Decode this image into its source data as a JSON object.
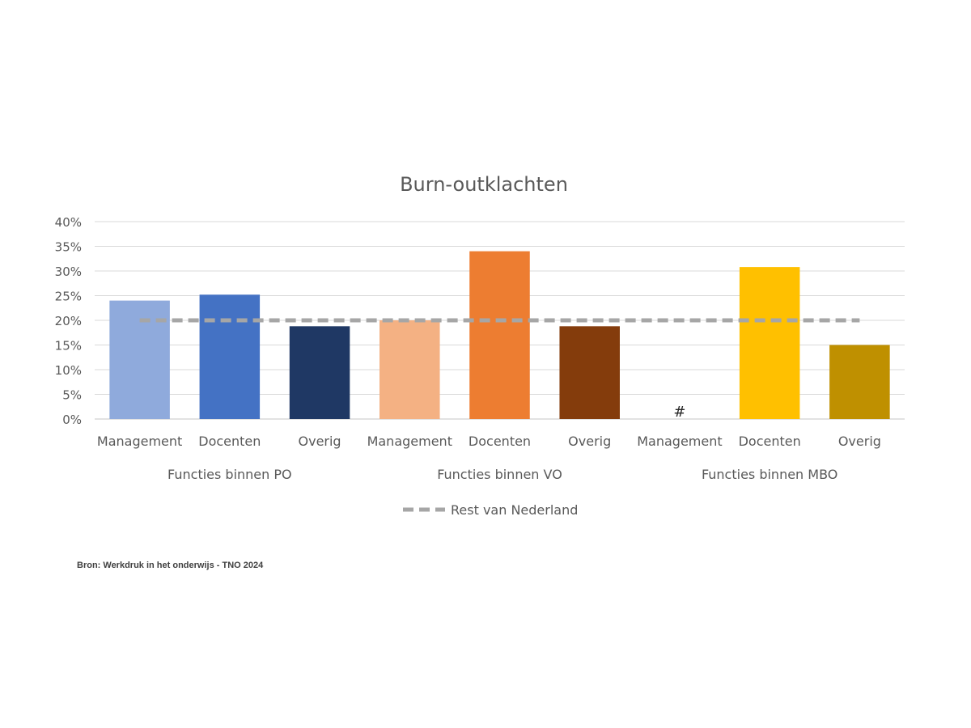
{
  "chart_data": {
    "type": "bar",
    "title": "Burn-outklachten",
    "ylim": [
      0,
      40
    ],
    "yticks": [
      0,
      5,
      10,
      15,
      20,
      25,
      30,
      35,
      40
    ],
    "ytick_labels": [
      "0%",
      "5%",
      "10%",
      "15%",
      "20%",
      "25%",
      "30%",
      "35%",
      "40%"
    ],
    "grid": true,
    "groups": [
      {
        "label": "Functies binnen PO",
        "bars": [
          {
            "category": "Management",
            "value": 24,
            "color": "#8FAADC"
          },
          {
            "category": "Docenten",
            "value": 25.2,
            "color": "#4472C4"
          },
          {
            "category": "Overig",
            "value": 18.8,
            "color": "#1F3864"
          }
        ]
      },
      {
        "label": "Functies binnen VO",
        "bars": [
          {
            "category": "Management",
            "value": 20,
            "color": "#F4B183"
          },
          {
            "category": "Docenten",
            "value": 34,
            "color": "#ED7D31"
          },
          {
            "category": "Overig",
            "value": 18.8,
            "color": "#843C0C"
          }
        ]
      },
      {
        "label": "Functies binnen MBO",
        "bars": [
          {
            "category": "Management",
            "value": null,
            "marker": "#",
            "color": "#FFD966"
          },
          {
            "category": "Docenten",
            "value": 30.8,
            "color": "#FFC000"
          },
          {
            "category": "Overig",
            "value": 15,
            "color": "#BF9000"
          }
        ]
      }
    ],
    "reference_line": {
      "name": "Rest van Nederland",
      "value": 20,
      "color": "#A6A6A6",
      "style": "dashed"
    },
    "legend": {
      "placement": "bottom",
      "entries": [
        "Rest van Nederland"
      ]
    }
  },
  "source_note": "Bron: Werkdruk in het onderwijs - TNO 2024"
}
